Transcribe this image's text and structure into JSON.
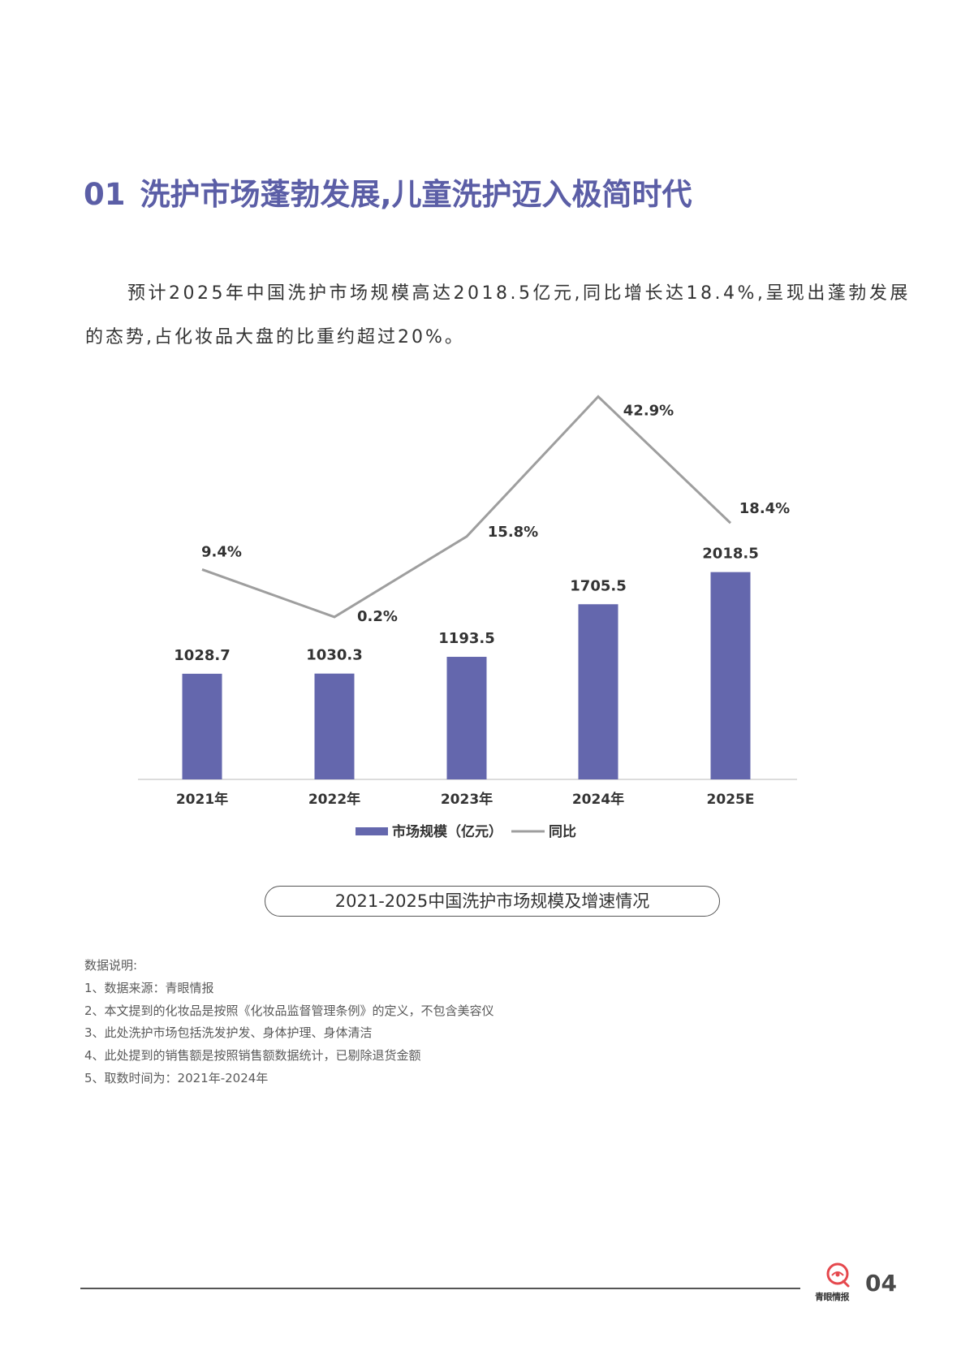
{
  "page": {
    "section_number": "01",
    "title": "洗护市场蓬勃发展,儿童洗护迈入极简时代",
    "paragraph_lines": [
      "预计2025年中国洗护市场规模高达2018.5亿元,同比增长达18.4%,呈现出蓬勃发展",
      "的态势,占化妆品大盘的比重约超过20%。"
    ],
    "notes": {
      "heading": "数据说明:",
      "items": [
        "1、数据来源：青眼情报",
        "2、本文提到的化妆品是按照《化妆品监督管理条例》的定义，不包含美容仪",
        "3、此处洗护市场包括洗发护发、身体护理、身体清洁",
        "4、此处提到的销售额是按照销售额数据统计，已剔除退货金额",
        "5、取数时间为：2021年-2024年"
      ]
    },
    "footer": {
      "logo_icon": "qingyan-logo-icon",
      "logo_text": "青眼情报",
      "page_number": "04"
    }
  },
  "colors": {
    "accent": "#5b5ea6",
    "bar": "#6467ad",
    "line": "#9e9e9e",
    "axis": "#d0d0d0"
  },
  "chart_data": {
    "type": "bar",
    "title": "2021-2025中国洗护市场规模及增速情况",
    "categories": [
      "2021年",
      "2022年",
      "2023年",
      "2024年",
      "2025E"
    ],
    "series": [
      {
        "name": "市场规模（亿元）",
        "type": "bar",
        "values": [
          1028.7,
          1030.3,
          1193.5,
          1705.5,
          2018.5
        ]
      },
      {
        "name": "同比",
        "type": "line",
        "values": [
          9.4,
          0.2,
          15.8,
          42.9,
          18.4
        ],
        "labels": [
          "9.4%",
          "0.2%",
          "15.8%",
          "42.9%",
          "18.4%"
        ]
      }
    ],
    "legend": "bottom",
    "grid": false,
    "y_axes_visible": false
  }
}
